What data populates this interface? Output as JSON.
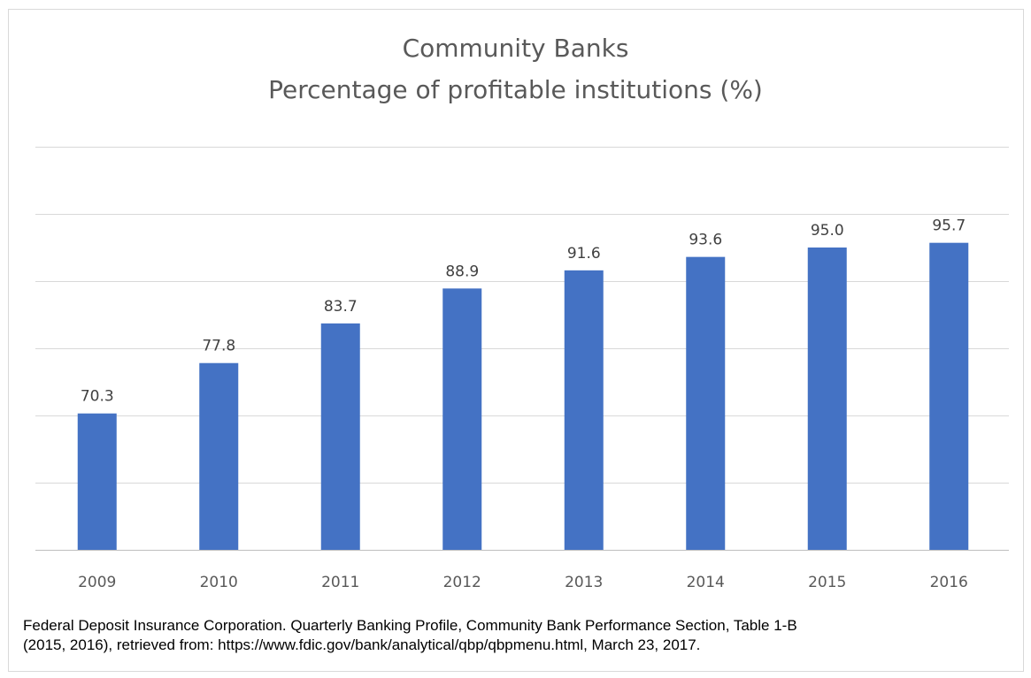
{
  "chart": {
    "title_line1": "Community Banks",
    "title_line2": "Percentage of profitable institutions (%)",
    "source_line1": "Federal Deposit Insurance Corporation. Quarterly Banking Profile, Community Bank Performance Section, Table 1-B",
    "source_line2": "(2015, 2016), retrieved from: https://www.fdic.gov/bank/analytical/qbp/qbpmenu.html, March 23, 2017."
  },
  "chart_data": {
    "type": "bar",
    "title": "Community Banks\nPercentage of profitable institutions (%)",
    "categories": [
      "2009",
      "2010",
      "2011",
      "2012",
      "2013",
      "2014",
      "2015",
      "2016"
    ],
    "values": [
      70.3,
      77.8,
      83.7,
      88.9,
      91.6,
      93.6,
      95.0,
      95.7
    ],
    "data_labels": [
      "70.3",
      "77.8",
      "83.7",
      "88.9",
      "91.6",
      "93.6",
      "95.0",
      "95.7"
    ],
    "xlabel": "",
    "ylabel": "",
    "ylim": [
      50,
      110
    ],
    "grid": true,
    "y_tick_labels_shown": false,
    "legend": "none",
    "bar_color": "#4472c4"
  }
}
